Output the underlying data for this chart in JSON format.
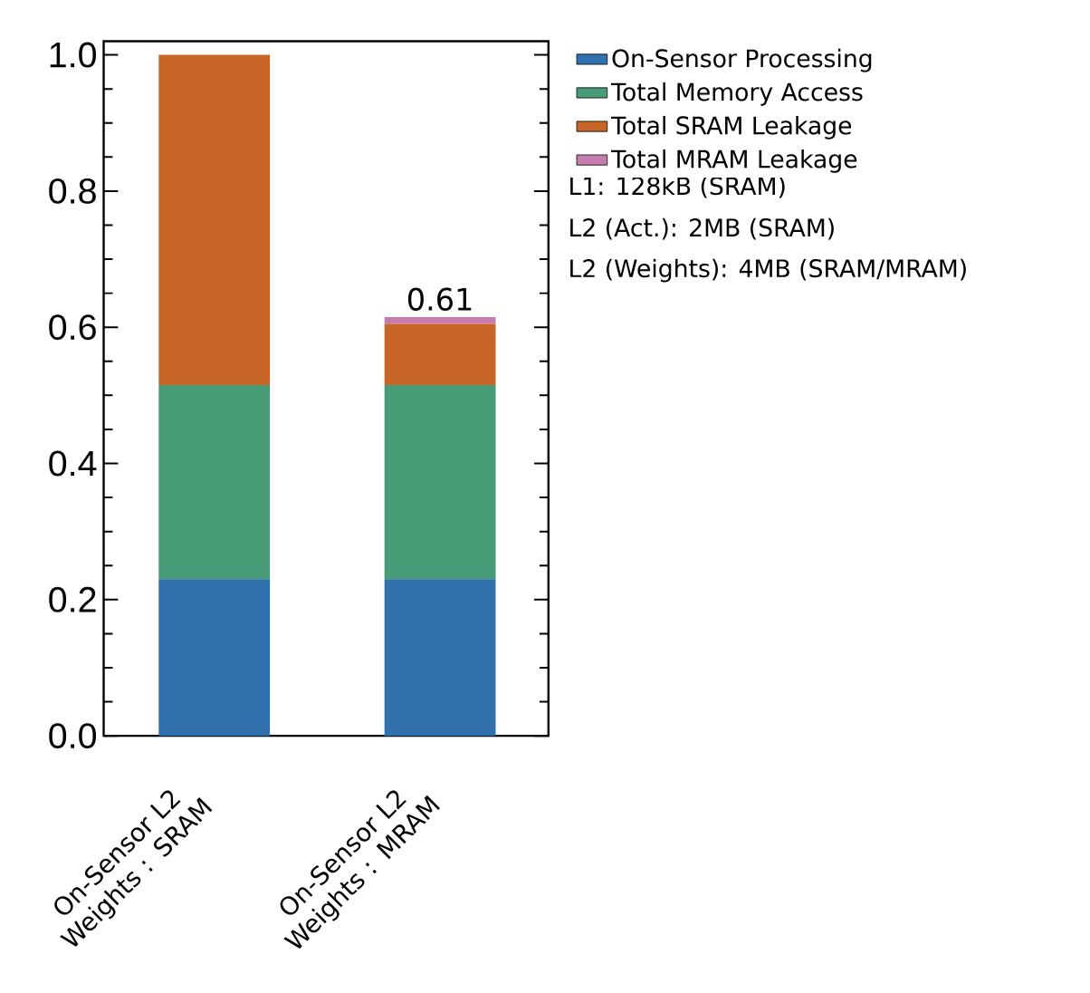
{
  "chart_data": {
    "type": "bar",
    "stacked": true,
    "categories": [
      "On-Sensor L2 Weights : SRAM",
      "On-Sensor L2 Weights : MRAM"
    ],
    "series": [
      {
        "name": "On-Sensor Processing",
        "color": "#3070ad",
        "values": [
          0.23,
          0.23
        ]
      },
      {
        "name": "Total Memory Access",
        "color": "#479b76",
        "values": [
          0.285,
          0.285
        ]
      },
      {
        "name": "Total SRAM Leakage",
        "color": "#c66526",
        "values": [
          0.485,
          0.09
        ]
      },
      {
        "name": "Total MRAM Leakage",
        "color": "#c57daf",
        "values": [
          0,
          0.01
        ]
      }
    ],
    "ylim": [
      0,
      1.02
    ],
    "yticks": [
      {
        "value": 0,
        "label": "0.0"
      },
      0.2,
      0.4,
      0.6,
      0.8,
      {
        "value": 1,
        "label": "1.0"
      }
    ],
    "totals": [
      null,
      "0.61"
    ],
    "legend": "top right",
    "annotations": [
      "L1: 128kB (SRAM)",
      "L2 (Act.): 2MB (SRAM)",
      "L2 (Weights): 4MB (SRAM/MRAM)"
    ]
  }
}
